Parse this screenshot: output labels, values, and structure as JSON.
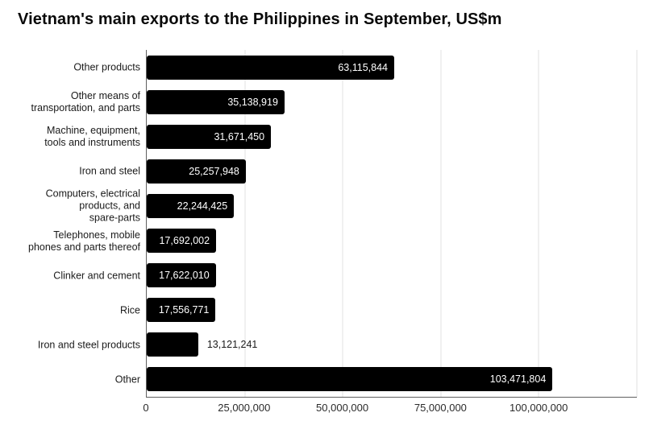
{
  "title": "Vietnam's main exports to the Philippines in September, US$m",
  "colors": {
    "bar": "#000000",
    "value_label_inside": "#ffffff",
    "value_label_outside": "#1a1a1a",
    "gridline": "#e2e2e2",
    "axis_line": "#5f5f5f",
    "text": "#1a1a1a"
  },
  "chart_data": {
    "type": "bar",
    "orientation": "horizontal",
    "title": "Vietnam's main exports to the Philippines in September, US$m",
    "categories": [
      "Other products",
      "Other means of\ntransportation, and parts",
      "Machine, equipment,\ntools and instruments",
      "Iron and steel",
      "Computers, electrical\nproducts, and\nspare-parts",
      "Telephones, mobile\nphones and parts thereof",
      "Clinker and cement",
      "Rice",
      "Iron and steel products",
      "Other"
    ],
    "values": [
      63115844,
      35138919,
      31671450,
      25257948,
      22244425,
      17692002,
      17622010,
      17556771,
      13121241,
      103471804
    ],
    "value_labels": [
      "63,115,844",
      "35,138,919",
      "31,671,450",
      "25,257,948",
      "22,244,425",
      "17,692,002",
      "17,622,010",
      "17,556,771",
      "13,121,241",
      "103,471,804"
    ],
    "label_inside": [
      true,
      true,
      true,
      true,
      true,
      true,
      true,
      true,
      false,
      true
    ],
    "xlim": [
      0,
      125000000
    ],
    "x_ticks": [
      {
        "value": 0,
        "label": "0"
      },
      {
        "value": 25000000,
        "label": "25,000,000"
      },
      {
        "value": 50000000,
        "label": "50,000,000"
      },
      {
        "value": 75000000,
        "label": "75,000,000"
      },
      {
        "value": 100000000,
        "label": "100,000,000"
      }
    ],
    "grid_values": [
      25000000,
      50000000,
      75000000,
      100000000,
      125000000
    ],
    "grid": true,
    "legend": "none",
    "xlabel": "",
    "ylabel": ""
  }
}
